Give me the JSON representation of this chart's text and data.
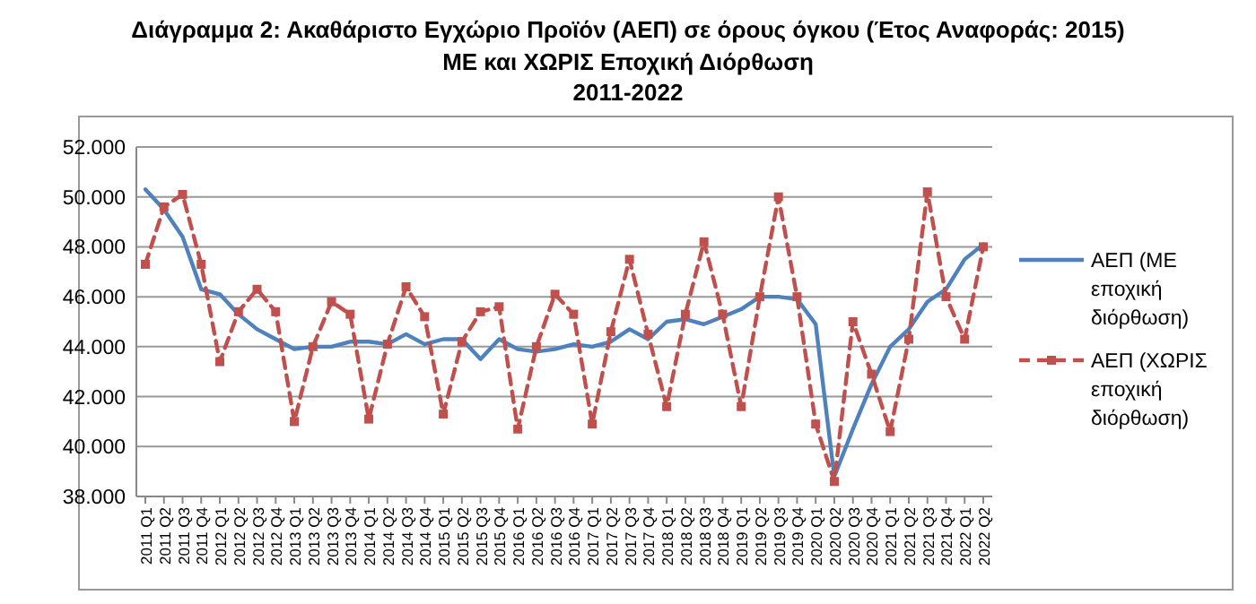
{
  "chart_data": {
    "type": "line",
    "title": "Διάγραμμα 2: Ακαθάριστο Εγχώριο Προϊόν (ΑΕΠ) σε όρους όγκου (Έτος Αναφοράς: 2015)",
    "subtitle": "ΜΕ και ΧΩΡΙΣ Εποχική Διόρθωση\n2011-2022",
    "categories": [
      "2011 Q1",
      "2011 Q2",
      "2011 Q3",
      "2011 Q4",
      "2012 Q1",
      "2012 Q2",
      "2012 Q3",
      "2012 Q4",
      "2013 Q1",
      "2013 Q2",
      "2013 Q3",
      "2013 Q4",
      "2014 Q1",
      "2014 Q2",
      "2014 Q3",
      "2014 Q4",
      "2015 Q1",
      "2015 Q2",
      "2015 Q3",
      "2015 Q4",
      "2016 Q1",
      "2016 Q2",
      "2016 Q3",
      "2016 Q4",
      "2017 Q1",
      "2017 Q2",
      "2017 Q3",
      "2017 Q4",
      "2018 Q1",
      "2018 Q2",
      "2018 Q3",
      "2018 Q4",
      "2019 Q1",
      "2019 Q2",
      "2019 Q3",
      "2019 Q4",
      "2020 Q1",
      "2020 Q2",
      "2020 Q3",
      "2020 Q4",
      "2021 Q1",
      "2021 Q2",
      "2021 Q3",
      "2021 Q4",
      "2022 Q1",
      "2022 Q2"
    ],
    "series": [
      {
        "name": "ΑΕΠ (ΜΕ εποχική διόρθωση)",
        "color": "#4f81bd",
        "line_style": "solid",
        "marker": "none",
        "values": [
          50300,
          49500,
          48400,
          46300,
          46100,
          45300,
          44700,
          44300,
          43900,
          44000,
          44000,
          44200,
          44200,
          44100,
          44500,
          44100,
          44300,
          44300,
          43500,
          44300,
          43900,
          43800,
          43900,
          44100,
          44000,
          44200,
          44700,
          44300,
          45000,
          45100,
          44900,
          45200,
          45500,
          46000,
          46000,
          45900,
          44900,
          38800,
          40700,
          42500,
          44000,
          44700,
          45800,
          46300,
          47500,
          48100
        ]
      },
      {
        "name": "ΑΕΠ (ΧΩΡΙΣ εποχική διόρθωση)",
        "color": "#c0504d",
        "line_style": "dashed",
        "marker": "square",
        "values": [
          47300,
          49600,
          50100,
          47300,
          43400,
          45400,
          46300,
          45400,
          41000,
          44000,
          45800,
          45300,
          41100,
          44100,
          46400,
          45200,
          41300,
          44200,
          45400,
          45600,
          40700,
          44000,
          46100,
          45300,
          40900,
          44600,
          47500,
          44500,
          41600,
          45300,
          48200,
          45300,
          41600,
          46000,
          50000,
          46000,
          40900,
          38600,
          45000,
          42900,
          40600,
          44300,
          50200,
          46000,
          44300,
          48000
        ]
      }
    ],
    "ylim": [
      38000,
      52000
    ],
    "yticks": [
      {
        "value": 38000,
        "label": "38.000"
      },
      {
        "value": 40000,
        "label": "40.000"
      },
      {
        "value": 42000,
        "label": "42.000"
      },
      {
        "value": 44000,
        "label": "44.000"
      },
      {
        "value": 46000,
        "label": "46.000"
      },
      {
        "value": 48000,
        "label": "48.000"
      },
      {
        "value": 50000,
        "label": "50.000"
      },
      {
        "value": 52000,
        "label": "52.000"
      }
    ],
    "grid": "y",
    "legend": "right"
  }
}
